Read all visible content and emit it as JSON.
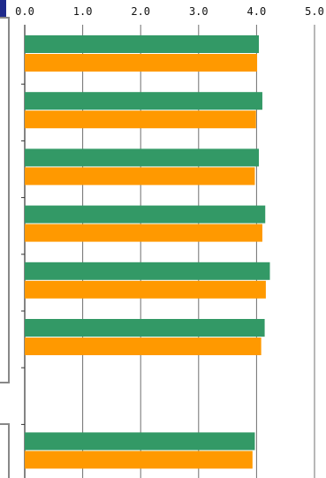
{
  "colors": {
    "series_green": "#339966",
    "series_orange": "#ff9900",
    "grid": "#6f6f6f",
    "axis": "#333333",
    "panel_border": "#888888",
    "corner_accent": "#1f2a8c"
  },
  "chart_data": {
    "type": "bar",
    "orientation": "horizontal",
    "grid": true,
    "xlim": [
      0,
      5
    ],
    "x_ticks": [
      "0.0",
      "1.0",
      "2.0",
      "3.0",
      "4.0",
      "5.0"
    ],
    "x_tick_values": [
      0,
      1,
      2,
      3,
      4,
      5
    ],
    "categories": [
      "",
      "",
      "",
      "",
      "",
      "",
      "",
      ""
    ],
    "series": [
      {
        "color": "#339966",
        "values": [
          4.04,
          4.1,
          4.04,
          4.15,
          4.23,
          4.14,
          null,
          3.97
        ]
      },
      {
        "color": "#ff9900",
        "values": [
          4.01,
          3.99,
          3.97,
          4.1,
          4.16,
          4.08,
          null,
          3.93
        ]
      }
    ]
  }
}
